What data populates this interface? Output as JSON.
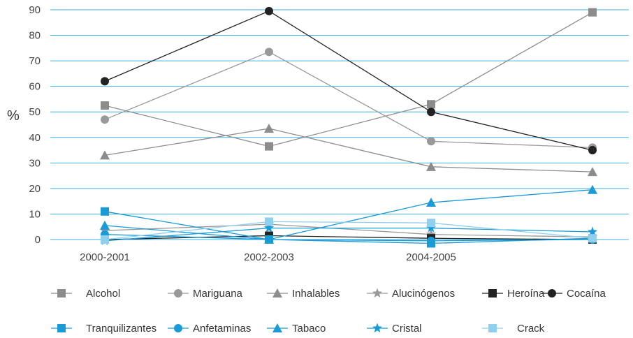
{
  "chart_data": {
    "type": "line",
    "title": "",
    "xlabel": "",
    "ylabel": "%",
    "ylim": [
      0,
      90
    ],
    "yticks": [
      0,
      10,
      20,
      30,
      40,
      50,
      60,
      70,
      80,
      90
    ],
    "categories": [
      "2000-2001",
      "2002-2003",
      "2004-2005",
      ""
    ],
    "grid": true,
    "gridColor": "#3fb3e0",
    "legend_position": "bottom",
    "series": [
      {
        "name": "Alcohol",
        "color": "#8c8c8c",
        "marker": "square",
        "values": [
          52.5,
          36.5,
          53,
          89
        ]
      },
      {
        "name": "Mariguana",
        "color": "#999999",
        "marker": "circle",
        "values": [
          47,
          73.5,
          38.5,
          36
        ]
      },
      {
        "name": "Inhalables",
        "color": "#8c8c8c",
        "marker": "triangle",
        "values": [
          33,
          43.5,
          28.5,
          26.5
        ]
      },
      {
        "name": "Alucinógenos",
        "color": "#999999",
        "marker": "star",
        "values": [
          3.5,
          6,
          2,
          1
        ]
      },
      {
        "name": "Heroína",
        "color": "#222222",
        "marker": "square",
        "values": [
          0,
          1.5,
          0.5,
          0
        ]
      },
      {
        "name": "Cocaína",
        "color": "#222222",
        "marker": "circle",
        "values": [
          62,
          89.5,
          50,
          35
        ]
      },
      {
        "name": "Tranquilizantes",
        "color": "#1a9ad6",
        "marker": "square",
        "values": [
          11,
          0,
          -1.5,
          0.5
        ]
      },
      {
        "name": "Anfetaminas",
        "color": "#1a9ad6",
        "marker": "circle",
        "values": [
          2,
          0,
          -0.5,
          0
        ]
      },
      {
        "name": "Tabaco",
        "color": "#1a9ad6",
        "marker": "triangle",
        "values": [
          5.5,
          0,
          14.5,
          19.5
        ]
      },
      {
        "name": "Cristal",
        "color": "#1a9ad6",
        "marker": "star",
        "values": [
          -0.5,
          4.5,
          4.5,
          3
        ]
      },
      {
        "name": "Crack",
        "color": "#8fd0ef",
        "marker": "square",
        "values": [
          0,
          7,
          6.5,
          0.5
        ]
      }
    ]
  }
}
